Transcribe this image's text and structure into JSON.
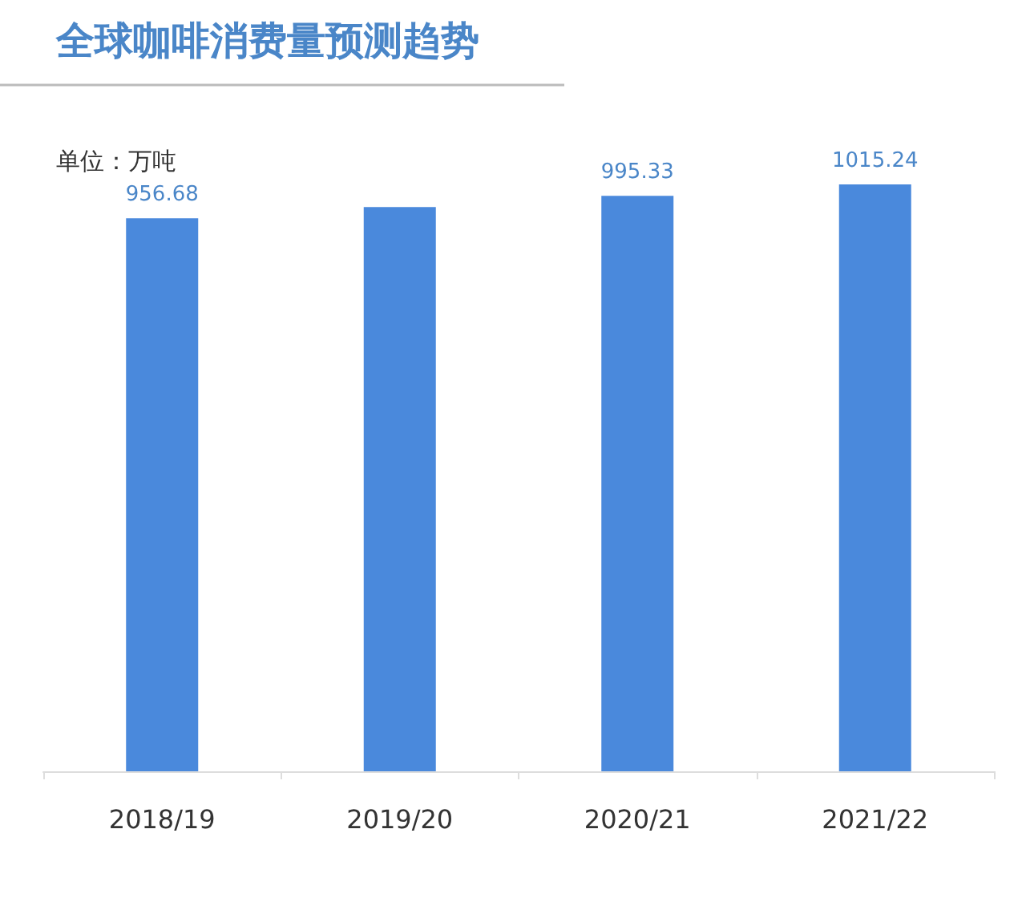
{
  "chart_data": {
    "type": "bar",
    "title": "全球咖啡消费量预测趋势",
    "subtitle": "单位：万吨",
    "categories": [
      "2018/19",
      "2019/20",
      "2020/21",
      "2021/22"
    ],
    "values": [
      956.68,
      976,
      995.33,
      1015.24
    ],
    "value_labels": [
      "956.68",
      null,
      "995.33",
      "1015.24"
    ],
    "color": "#4a89dc",
    "tick_labels": "x"
  }
}
